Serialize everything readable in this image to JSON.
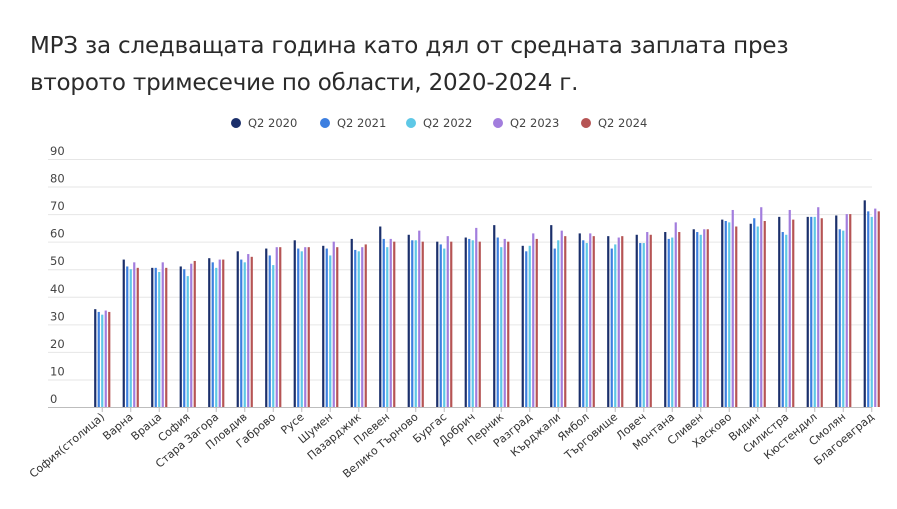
{
  "title": "МРЗ за следващата година като дял от средната заплата през второто тримесечие по области, 2020-2024 г.",
  "chart_data": {
    "type": "bar",
    "title": "МРЗ за следващата година като дял от средната заплата през второто тримесечие по области, 2020-2024 г.",
    "xlabel": "",
    "ylabel": "",
    "ylim": [
      0,
      90
    ],
    "yticks": [
      0,
      10,
      20,
      30,
      40,
      50,
      60,
      70,
      80,
      90
    ],
    "grid": true,
    "legend_position": "top",
    "categories": [
      "София(столица)",
      "Варна",
      "Враца",
      "София",
      "Стара Загора",
      "Пловдив",
      "Габрово",
      "Русе",
      "Шумен",
      "Пазарджик",
      "Плевен",
      "Велико Търново",
      "Бургас",
      "Добрич",
      "Перник",
      "Разград",
      "Кърджали",
      "Ямбол",
      "Търговище",
      "Ловеч",
      "Монтана",
      "Сливен",
      "Хасково",
      "Видин",
      "Силистра",
      "Кюстендил",
      "Смолян",
      "Благоевград"
    ],
    "series": [
      {
        "name": "Q2 2020",
        "color": "#1b2f6b",
        "values": [
          35.5,
          53.5,
          50.5,
          51,
          54,
          56.5,
          57.5,
          60.5,
          58.5,
          61,
          65.5,
          62.5,
          60,
          61.5,
          66,
          58.5,
          66,
          63,
          62,
          62.5,
          63.5,
          64.5,
          68,
          66.5,
          69,
          69,
          69.5,
          75
        ]
      },
      {
        "name": "Q2 2021",
        "color": "#3d7fe0",
        "values": [
          34.5,
          51,
          50.5,
          50,
          52.5,
          53.5,
          55,
          57.5,
          57.5,
          57,
          61,
          60.5,
          59,
          61,
          61.5,
          56.5,
          57.5,
          60.5,
          57.5,
          59.5,
          61,
          63.5,
          67.5,
          68.5,
          63.5,
          69,
          64.5,
          71
        ]
      },
      {
        "name": "Q2 2022",
        "color": "#5ec8e6",
        "values": [
          33.5,
          50,
          49,
          47.5,
          50.5,
          52.5,
          51.5,
          56.5,
          55,
          56.5,
          58,
          60.5,
          57.5,
          60.5,
          58,
          58.5,
          60.5,
          59.5,
          59,
          59.5,
          61.5,
          62.5,
          67,
          65.5,
          62.5,
          69,
          64,
          69
        ]
      },
      {
        "name": "Q2 2023",
        "color": "#a27ddd",
        "values": [
          35,
          52.5,
          52.5,
          52,
          53.5,
          55.5,
          58,
          58,
          60,
          58,
          61,
          64,
          62,
          65,
          61,
          63,
          64,
          63,
          61.5,
          63.5,
          67,
          64.5,
          71.5,
          72.5,
          71.5,
          72.5,
          70,
          72
        ]
      },
      {
        "name": "Q2 2024",
        "color": "#b65454",
        "values": [
          34.5,
          50.5,
          50.5,
          53,
          53.5,
          54.5,
          58,
          58,
          58,
          59,
          60,
          60,
          60,
          60,
          60,
          61,
          62,
          62,
          62,
          62.5,
          63.5,
          64.5,
          65.5,
          67.5,
          68,
          68.5,
          70,
          71
        ]
      }
    ]
  }
}
